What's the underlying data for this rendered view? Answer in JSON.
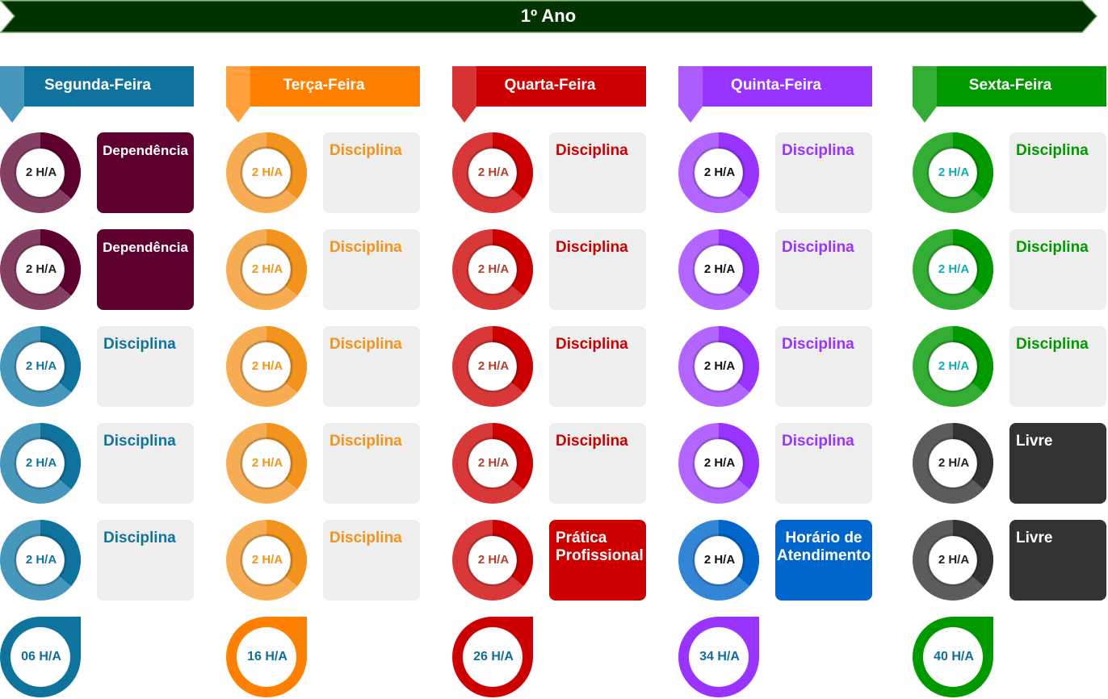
{
  "title": "1º Ano",
  "colors": {
    "banner": "#003300",
    "banner_border": "#6aa05a",
    "card_light": "#eeeeee",
    "total_text": "#0e6f9a"
  },
  "days": [
    {
      "name": "Segunda-Feira",
      "color": "#10739e",
      "light": "#4796bb",
      "ring_text": "#10739e",
      "total": "06 H/A",
      "slots": [
        {
          "hours": "2 H/A",
          "label": "Dependência",
          "card": "#5d0030",
          "text": "#ffffff",
          "ring": "#5d0030",
          "ring_light": "#834063",
          "ring_text": "#222222"
        },
        {
          "hours": "2 H/A",
          "label": "Dependência",
          "card": "#5d0030",
          "text": "#ffffff",
          "ring": "#5d0030",
          "ring_light": "#834063",
          "ring_text": "#222222"
        },
        {
          "hours": "2 H/A",
          "label": "Disciplina",
          "card": "#eeeeee",
          "text": "#10739e",
          "ring": "#10739e",
          "ring_light": "#4796bb",
          "ring_text": "#10739e"
        },
        {
          "hours": "2 H/A",
          "label": "Disciplina",
          "card": "#eeeeee",
          "text": "#10739e",
          "ring": "#10739e",
          "ring_light": "#4796bb",
          "ring_text": "#10739e"
        },
        {
          "hours": "2 H/A",
          "label": "Disciplina",
          "card": "#eeeeee",
          "text": "#10739e",
          "ring": "#10739e",
          "ring_light": "#4796bb",
          "ring_text": "#10739e"
        }
      ]
    },
    {
      "name": "Terça-Feira",
      "color": "#ff7f00",
      "light": "#ffa03c",
      "total": "16 H/A",
      "slots": [
        {
          "hours": "2 H/A",
          "label": "Disciplina",
          "card": "#eeeeee",
          "text": "#f2931e",
          "ring": "#f2931e",
          "ring_light": "#f5ac52",
          "ring_text": "#f2931e"
        },
        {
          "hours": "2 H/A",
          "label": "Disciplina",
          "card": "#eeeeee",
          "text": "#f2931e",
          "ring": "#f2931e",
          "ring_light": "#f5ac52",
          "ring_text": "#f2931e"
        },
        {
          "hours": "2 H/A",
          "label": "Disciplina",
          "card": "#eeeeee",
          "text": "#f2931e",
          "ring": "#f2931e",
          "ring_light": "#f5ac52",
          "ring_text": "#f2931e"
        },
        {
          "hours": "2 H/A",
          "label": "Disciplina",
          "card": "#eeeeee",
          "text": "#f2931e",
          "ring": "#f2931e",
          "ring_light": "#f5ac52",
          "ring_text": "#f2931e"
        },
        {
          "hours": "2 H/A",
          "label": "Disciplina",
          "card": "#eeeeee",
          "text": "#f2931e",
          "ring": "#f2931e",
          "ring_light": "#f5ac52",
          "ring_text": "#f2931e"
        }
      ]
    },
    {
      "name": "Quarta-Feira",
      "color": "#cc0000",
      "light": "#d63434",
      "total": "26 H/A",
      "slots": [
        {
          "hours": "2 H/A",
          "label": "Disciplina",
          "card": "#eeeeee",
          "text": "#cc0000",
          "ring": "#cc0000",
          "ring_light": "#d83838",
          "ring_text": "#ae4132"
        },
        {
          "hours": "2 H/A",
          "label": "Disciplina",
          "card": "#eeeeee",
          "text": "#cc0000",
          "ring": "#cc0000",
          "ring_light": "#d83838",
          "ring_text": "#ae4132"
        },
        {
          "hours": "2 H/A",
          "label": "Disciplina",
          "card": "#eeeeee",
          "text": "#cc0000",
          "ring": "#cc0000",
          "ring_light": "#d83838",
          "ring_text": "#ae4132"
        },
        {
          "hours": "2 H/A",
          "label": "Disciplina",
          "card": "#eeeeee",
          "text": "#cc0000",
          "ring": "#cc0000",
          "ring_light": "#d83838",
          "ring_text": "#ae4132"
        },
        {
          "hours": "2 H/A",
          "label": "Prática Profissional",
          "card": "#cc0000",
          "text": "#ffffff",
          "ring": "#cc0000",
          "ring_light": "#d83838",
          "ring_text": "#ae4132"
        }
      ]
    },
    {
      "name": "Quinta-Feira",
      "color": "#9933ff",
      "light": "#ad5cff",
      "total": "34 H/A",
      "slots": [
        {
          "hours": "2 H/A",
          "label": "Disciplina",
          "card": "#eeeeee",
          "text": "#9933ff",
          "ring": "#9933ff",
          "ring_light": "#b366ff",
          "ring_text": "#111111"
        },
        {
          "hours": "2 H/A",
          "label": "Disciplina",
          "card": "#eeeeee",
          "text": "#9933ff",
          "ring": "#9933ff",
          "ring_light": "#b366ff",
          "ring_text": "#111111"
        },
        {
          "hours": "2 H/A",
          "label": "Disciplina",
          "card": "#eeeeee",
          "text": "#9933ff",
          "ring": "#9933ff",
          "ring_light": "#b366ff",
          "ring_text": "#111111"
        },
        {
          "hours": "2 H/A",
          "label": "Disciplina",
          "card": "#eeeeee",
          "text": "#9933ff",
          "ring": "#9933ff",
          "ring_light": "#b366ff",
          "ring_text": "#111111"
        },
        {
          "hours": "2 H/A",
          "label": "Horário de Atendimento",
          "card": "#0066cc",
          "text": "#ffffff",
          "ring": "#0066cc",
          "ring_light": "#3385d6",
          "ring_text": "#111111",
          "center": true
        }
      ]
    },
    {
      "name": "Sexta-Feira",
      "color": "#009900",
      "light": "#33ad33",
      "total": "40 H/A",
      "slots": [
        {
          "hours": "2 H/A",
          "label": "Disciplina",
          "card": "#eeeeee",
          "text": "#009900",
          "ring": "#009900",
          "ring_light": "#33ad33",
          "ring_text": "#12aab5"
        },
        {
          "hours": "2 H/A",
          "label": "Disciplina",
          "card": "#eeeeee",
          "text": "#009900",
          "ring": "#009900",
          "ring_light": "#33ad33",
          "ring_text": "#12aab5"
        },
        {
          "hours": "2 H/A",
          "label": "Disciplina",
          "card": "#eeeeee",
          "text": "#009900",
          "ring": "#009900",
          "ring_light": "#33ad33",
          "ring_text": "#12aab5"
        },
        {
          "hours": "2 H/A",
          "label": "Livre",
          "card": "#333333",
          "text": "#ffffff",
          "ring": "#333333",
          "ring_light": "#5c5c5c",
          "ring_text": "#222222"
        },
        {
          "hours": "2 H/A",
          "label": "Livre",
          "card": "#333333",
          "text": "#ffffff",
          "ring": "#333333",
          "ring_light": "#5c5c5c",
          "ring_text": "#222222"
        }
      ]
    }
  ]
}
